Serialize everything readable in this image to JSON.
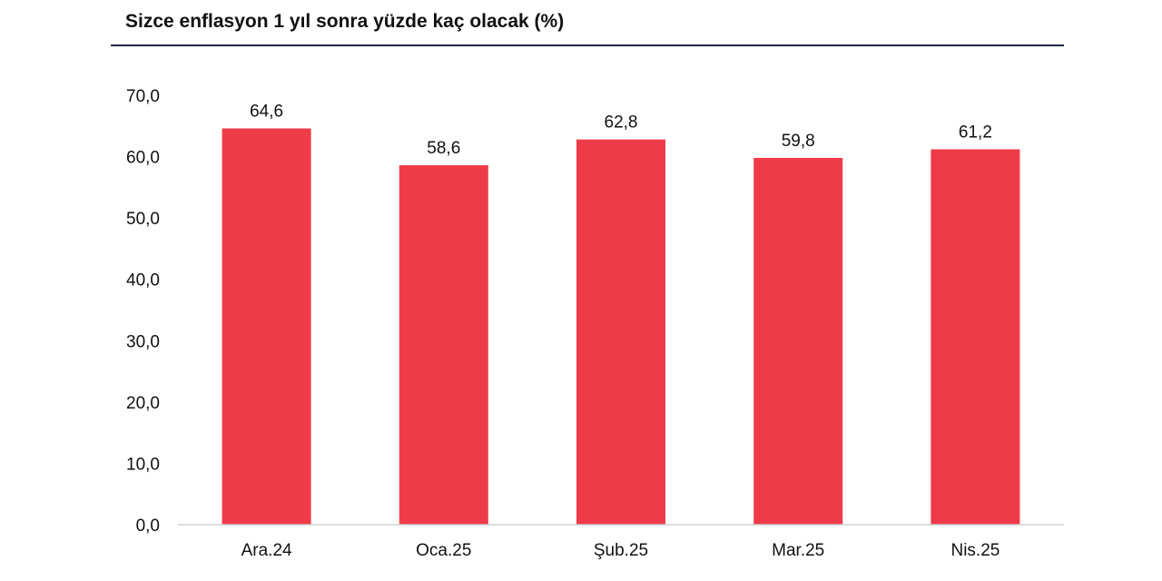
{
  "chart_data": {
    "type": "bar",
    "title": "Sizce enflasyon 1 yıl sonra yüzde kaç olacak (%)",
    "categories": [
      "Ara.24",
      "Oca.25",
      "Şub.25",
      "Mar.25",
      "Nis.25"
    ],
    "values": [
      64.6,
      58.6,
      62.8,
      59.8,
      61.2
    ],
    "value_labels": [
      "64,6",
      "58,6",
      "62,8",
      "59,8",
      "61,2"
    ],
    "yticks": [
      0,
      10,
      20,
      30,
      40,
      50,
      60,
      70
    ],
    "ytick_labels": [
      "0,0",
      "10,0",
      "20,0",
      "30,0",
      "40,0",
      "50,0",
      "60,0",
      "70,0"
    ],
    "ylim": [
      0,
      70
    ],
    "xlabel": "",
    "ylabel": "",
    "grid": false,
    "legend": "none",
    "bar_color": "#ef3b47"
  }
}
